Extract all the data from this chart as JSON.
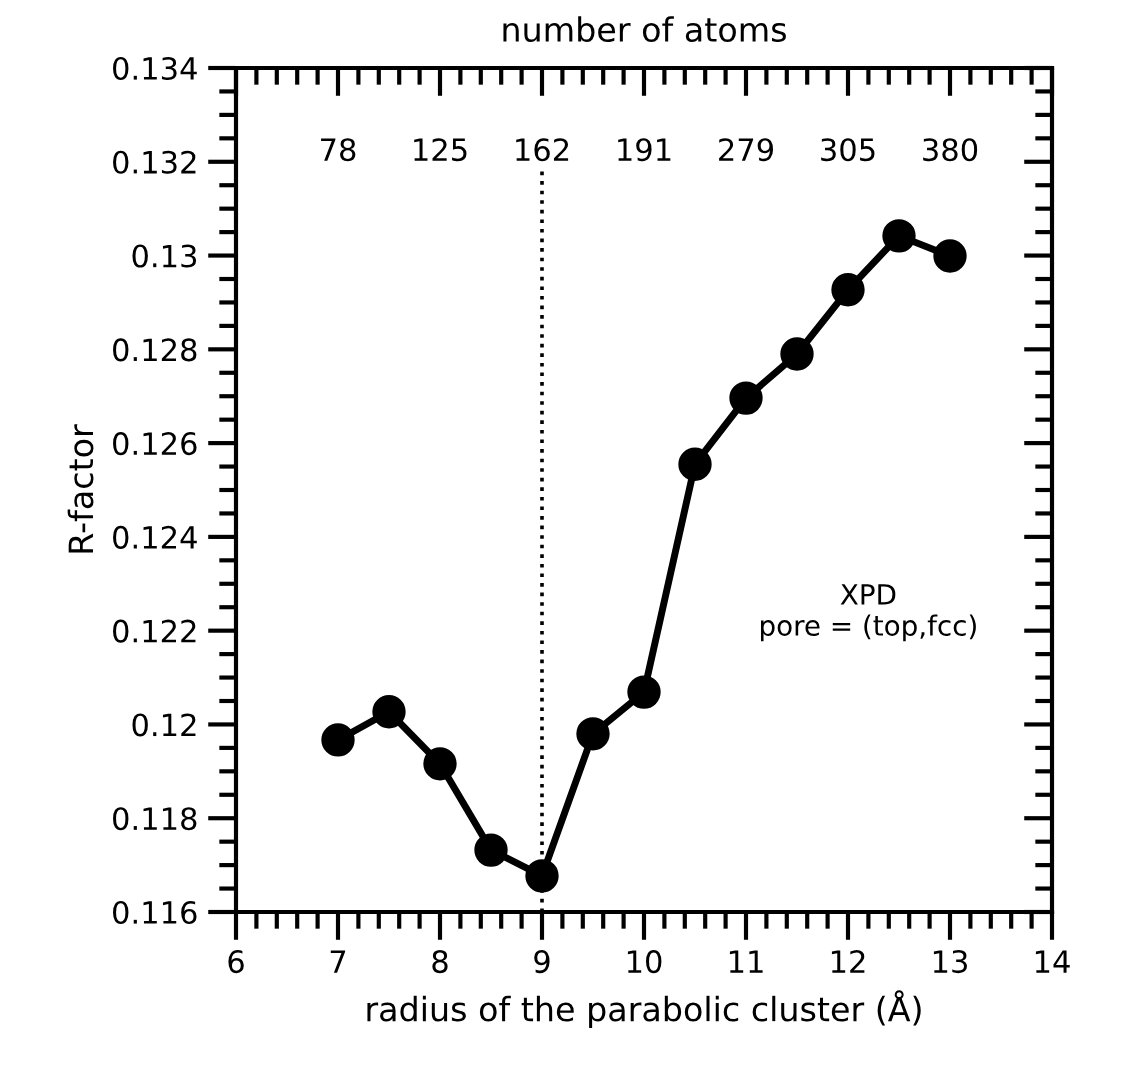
{
  "chart_data": {
    "type": "line",
    "xlabel": "radius of the parabolic cluster (Å)",
    "ylabel": "R-factor",
    "x2label": "number of atoms",
    "x": [
      7,
      7.5,
      8,
      8.5,
      9,
      9.5,
      10,
      10.5,
      11,
      11.5,
      12,
      12.5,
      13
    ],
    "series": [
      {
        "color": "#000000",
        "values": [
          0.11967,
          0.12027,
          0.11916,
          0.11732,
          0.11677,
          0.1198,
          0.12069,
          0.12555,
          0.12696,
          0.1279,
          0.12927,
          0.13042,
          0.12999
        ]
      }
    ],
    "xlim": [
      6,
      14
    ],
    "xticks": [
      6,
      7,
      8,
      9,
      10,
      11,
      12,
      13,
      14
    ],
    "ylim": [
      0.116,
      0.134
    ],
    "yticks": [
      0.116,
      0.118,
      0.12,
      0.122,
      0.124,
      0.126,
      0.128,
      0.13,
      0.132,
      0.134
    ],
    "ref_lines": [
      {
        "axis": "x",
        "value": 9,
        "color": "#000000",
        "line_style": "dotted"
      }
    ],
    "annotations": [
      "XPD\npore = (top,fcc)",
      "78",
      "125",
      "162",
      "191",
      "279",
      "305",
      "380"
    ],
    "marker": "circle",
    "line_style": "solid",
    "grid": false,
    "legend": false
  }
}
